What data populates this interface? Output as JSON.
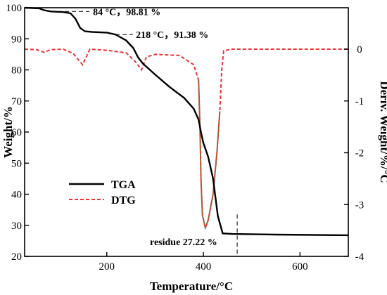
{
  "chart_data": {
    "type": "line",
    "xlabel": "Temperature/°C",
    "ylabel_left": "Weight/%",
    "ylabel_right": "Deriv. Weight/%/°C",
    "xlim": [
      30,
      700
    ],
    "ylim_left": [
      20,
      100
    ],
    "ylim_right": [
      -4,
      0.8
    ],
    "x_ticks": [
      200,
      400,
      600
    ],
    "y_ticks_left": [
      20,
      30,
      40,
      50,
      60,
      70,
      80,
      90,
      100
    ],
    "y_ticks_right": [
      -4,
      -3,
      -2,
      -1,
      0
    ],
    "grid": false,
    "legend": {
      "placement": "center-left"
    },
    "series": [
      {
        "name": "TGA",
        "axis": "left",
        "color": "#000000",
        "style": "solid",
        "points": [
          [
            30,
            100
          ],
          [
            60,
            99.8
          ],
          [
            70,
            99.2
          ],
          [
            84,
            98.81
          ],
          [
            110,
            98.6
          ],
          [
            125,
            98.2
          ],
          [
            135,
            96.5
          ],
          [
            145,
            93.5
          ],
          [
            155,
            92.4
          ],
          [
            170,
            92.2
          ],
          [
            200,
            92
          ],
          [
            218,
            91.38
          ],
          [
            240,
            89.5
          ],
          [
            255,
            87
          ],
          [
            265,
            84
          ],
          [
            275,
            82
          ],
          [
            300,
            78.5
          ],
          [
            330,
            74.5
          ],
          [
            360,
            71
          ],
          [
            380,
            67.5
          ],
          [
            390,
            64
          ],
          [
            395,
            60
          ],
          [
            400,
            56.5
          ],
          [
            410,
            52
          ],
          [
            420,
            45
          ],
          [
            430,
            33
          ],
          [
            440,
            27.4
          ],
          [
            460,
            27.22
          ],
          [
            550,
            27
          ],
          [
            700,
            26.8
          ]
        ]
      },
      {
        "name": "DTG",
        "axis": "right",
        "color": "#ee3333",
        "color_secondary": "#8b6a3a",
        "style": "dashed",
        "points": [
          [
            30,
            0
          ],
          [
            55,
            -0.01
          ],
          [
            70,
            -0.06
          ],
          [
            84,
            -0.01
          ],
          [
            110,
            0
          ],
          [
            130,
            -0.08
          ],
          [
            150,
            -0.3
          ],
          [
            165,
            0
          ],
          [
            200,
            -0.02
          ],
          [
            240,
            -0.07
          ],
          [
            260,
            -0.25
          ],
          [
            272,
            -0.4
          ],
          [
            282,
            -0.15
          ],
          [
            300,
            -0.1
          ],
          [
            350,
            -0.12
          ],
          [
            380,
            -0.3
          ],
          [
            390,
            -0.6
          ],
          [
            393,
            -1.5
          ],
          [
            395,
            -2.5
          ],
          [
            398,
            -3.2
          ],
          [
            404,
            -3.45
          ],
          [
            410,
            -3.3
          ],
          [
            420,
            -2.8
          ],
          [
            428,
            -2.0
          ],
          [
            434,
            -1.2
          ],
          [
            438,
            -0.4
          ],
          [
            442,
            -0.03
          ],
          [
            460,
            0
          ],
          [
            700,
            0
          ]
        ]
      }
    ],
    "annotations": [
      {
        "text": "84 °C，98.81 %",
        "x": 84,
        "y": 98.81,
        "axis": "left"
      },
      {
        "text": "218 °C，91.38 %",
        "x": 218,
        "y": 91.38,
        "axis": "left"
      },
      {
        "text": "residue 27.22 %",
        "x": 470,
        "y": 27.22,
        "axis": "left"
      }
    ],
    "colors": {
      "axis": "#000000",
      "tga": "#000000",
      "dtg": "#ee3333",
      "dtg_peak": "#8b6a3a"
    }
  }
}
